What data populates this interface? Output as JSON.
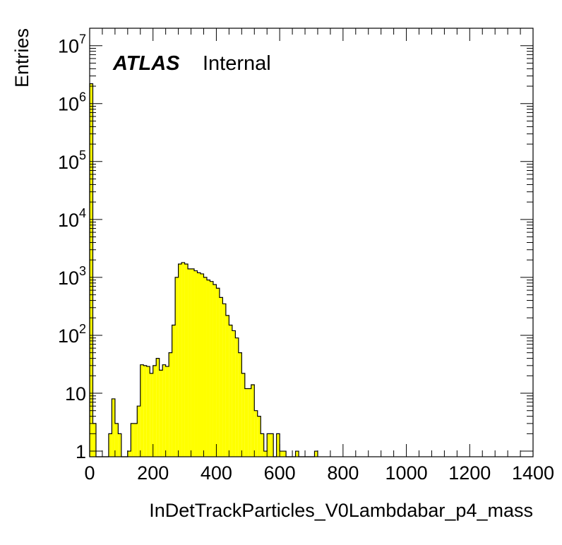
{
  "chart_data": {
    "type": "histogram",
    "xlabel": "InDetTrackParticles_V0Lambdabar_p4_mass",
    "ylabel": "Entries",
    "label_atlas": "ATLAS",
    "label_status": "Internal",
    "xlim": [
      0,
      1400
    ],
    "ylim": [
      0.8,
      20000000
    ],
    "yscale": "log",
    "bin_width": 10,
    "fill_color": "#ffff00",
    "line_color": "#000000",
    "x_ticks": [
      "0",
      "200",
      "400",
      "600",
      "800",
      "1000",
      "1200",
      "1400"
    ],
    "y_ticks": [
      {
        "value": 1,
        "base": "1",
        "exp": ""
      },
      {
        "value": 10,
        "base": "10",
        "exp": ""
      },
      {
        "value": 100,
        "base": "10",
        "exp": "2"
      },
      {
        "value": 1000,
        "base": "10",
        "exp": "3"
      },
      {
        "value": 10000,
        "base": "10",
        "exp": "4"
      },
      {
        "value": 100000,
        "base": "10",
        "exp": "5"
      },
      {
        "value": 1000000,
        "base": "10",
        "exp": "6"
      },
      {
        "value": 10000000,
        "base": "10",
        "exp": "7"
      }
    ],
    "bins": [
      {
        "x": 0,
        "y": 2200000
      },
      {
        "x": 10,
        "y": 3
      },
      {
        "x": 20,
        "y": 0
      },
      {
        "x": 30,
        "y": 0
      },
      {
        "x": 40,
        "y": 0
      },
      {
        "x": 50,
        "y": 0
      },
      {
        "x": 60,
        "y": 2
      },
      {
        "x": 70,
        "y": 8
      },
      {
        "x": 80,
        "y": 3
      },
      {
        "x": 90,
        "y": 2
      },
      {
        "x": 100,
        "y": 0
      },
      {
        "x": 110,
        "y": 0
      },
      {
        "x": 120,
        "y": 1
      },
      {
        "x": 130,
        "y": 3
      },
      {
        "x": 140,
        "y": 3
      },
      {
        "x": 150,
        "y": 6
      },
      {
        "x": 160,
        "y": 31
      },
      {
        "x": 170,
        "y": 30
      },
      {
        "x": 180,
        "y": 29
      },
      {
        "x": 190,
        "y": 22
      },
      {
        "x": 200,
        "y": 30
      },
      {
        "x": 210,
        "y": 40
      },
      {
        "x": 220,
        "y": 25
      },
      {
        "x": 230,
        "y": 31
      },
      {
        "x": 240,
        "y": 29
      },
      {
        "x": 250,
        "y": 50
      },
      {
        "x": 260,
        "y": 150
      },
      {
        "x": 270,
        "y": 1000
      },
      {
        "x": 280,
        "y": 1700
      },
      {
        "x": 290,
        "y": 1800
      },
      {
        "x": 300,
        "y": 1700
      },
      {
        "x": 310,
        "y": 1400
      },
      {
        "x": 320,
        "y": 1400
      },
      {
        "x": 330,
        "y": 1300
      },
      {
        "x": 340,
        "y": 1200
      },
      {
        "x": 350,
        "y": 1150
      },
      {
        "x": 360,
        "y": 1000
      },
      {
        "x": 370,
        "y": 900
      },
      {
        "x": 380,
        "y": 850
      },
      {
        "x": 390,
        "y": 750
      },
      {
        "x": 400,
        "y": 650
      },
      {
        "x": 410,
        "y": 450
      },
      {
        "x": 420,
        "y": 350
      },
      {
        "x": 430,
        "y": 220
      },
      {
        "x": 440,
        "y": 150
      },
      {
        "x": 450,
        "y": 120
      },
      {
        "x": 460,
        "y": 90
      },
      {
        "x": 470,
        "y": 50
      },
      {
        "x": 480,
        "y": 22
      },
      {
        "x": 490,
        "y": 12
      },
      {
        "x": 500,
        "y": 12
      },
      {
        "x": 510,
        "y": 14
      },
      {
        "x": 520,
        "y": 5
      },
      {
        "x": 530,
        "y": 4
      },
      {
        "x": 540,
        "y": 2
      },
      {
        "x": 550,
        "y": 1
      },
      {
        "x": 560,
        "y": 2
      },
      {
        "x": 570,
        "y": 2
      },
      {
        "x": 580,
        "y": 0
      },
      {
        "x": 590,
        "y": 2
      },
      {
        "x": 600,
        "y": 1
      },
      {
        "x": 610,
        "y": 1
      },
      {
        "x": 620,
        "y": 0
      },
      {
        "x": 630,
        "y": 0
      },
      {
        "x": 640,
        "y": 0
      },
      {
        "x": 650,
        "y": 1
      },
      {
        "x": 660,
        "y": 0
      },
      {
        "x": 670,
        "y": 0
      },
      {
        "x": 680,
        "y": 0
      },
      {
        "x": 690,
        "y": 0
      },
      {
        "x": 700,
        "y": 0
      },
      {
        "x": 710,
        "y": 1
      }
    ]
  }
}
